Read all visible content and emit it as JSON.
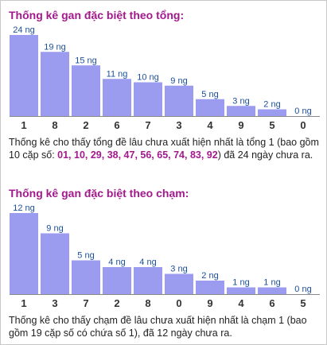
{
  "colors": {
    "title": "#a3198c",
    "bar": "#9b9cf0",
    "value_label": "#1b4f9a",
    "tick_label": "#333333",
    "axis": "#888888",
    "highlight": "#a3198c"
  },
  "sections": [
    {
      "title": "Thống kê gan đặc biệt theo tổng:",
      "desc": {
        "before": "Thống kê cho thấy tổng đề lâu chưa xuất hiện nhất là tổng 1 (bao gồm 10 cặp số: ",
        "highlight": "01, 10, 29, 38, 47, 56, 65, 74, 83, 92",
        "after": ") đã 24 ngày chưa ra."
      }
    },
    {
      "title": "Thống kê gan đặc biệt theo chạm:",
      "desc": {
        "before": "Thống kê cho thấy chạm đề lâu chưa xuất hiện nhất là chạm 1 (bao gồm 19 cặp số có chứa số 1), đã 12 ngày chưa ra.",
        "highlight": "",
        "after": ""
      }
    }
  ],
  "chart_data": [
    {
      "type": "bar",
      "title": "Thống kê gan đặc biệt theo tổng:",
      "categories": [
        "1",
        "8",
        "2",
        "6",
        "7",
        "3",
        "4",
        "9",
        "5",
        "0"
      ],
      "values": [
        24,
        19,
        15,
        11,
        10,
        9,
        5,
        3,
        2,
        0
      ],
      "value_labels": [
        "24 ng",
        "19 ng",
        "15 ng",
        "11 ng",
        "10 ng",
        "9 ng",
        "5 ng",
        "3 ng",
        "2 ng",
        "0 ng"
      ],
      "ylim": [
        0,
        24
      ],
      "grid": false
    },
    {
      "type": "bar",
      "title": "Thống kê gan đặc biệt theo chạm:",
      "categories": [
        "1",
        "3",
        "7",
        "2",
        "8",
        "0",
        "9",
        "4",
        "6",
        "5"
      ],
      "values": [
        12,
        9,
        5,
        4,
        4,
        3,
        2,
        1,
        1,
        0
      ],
      "value_labels": [
        "12 ng",
        "9 ng",
        "5 ng",
        "4 ng",
        "4 ng",
        "3 ng",
        "2 ng",
        "1 ng",
        "1 ng",
        "0 ng"
      ],
      "ylim": [
        0,
        12
      ],
      "grid": false
    }
  ]
}
